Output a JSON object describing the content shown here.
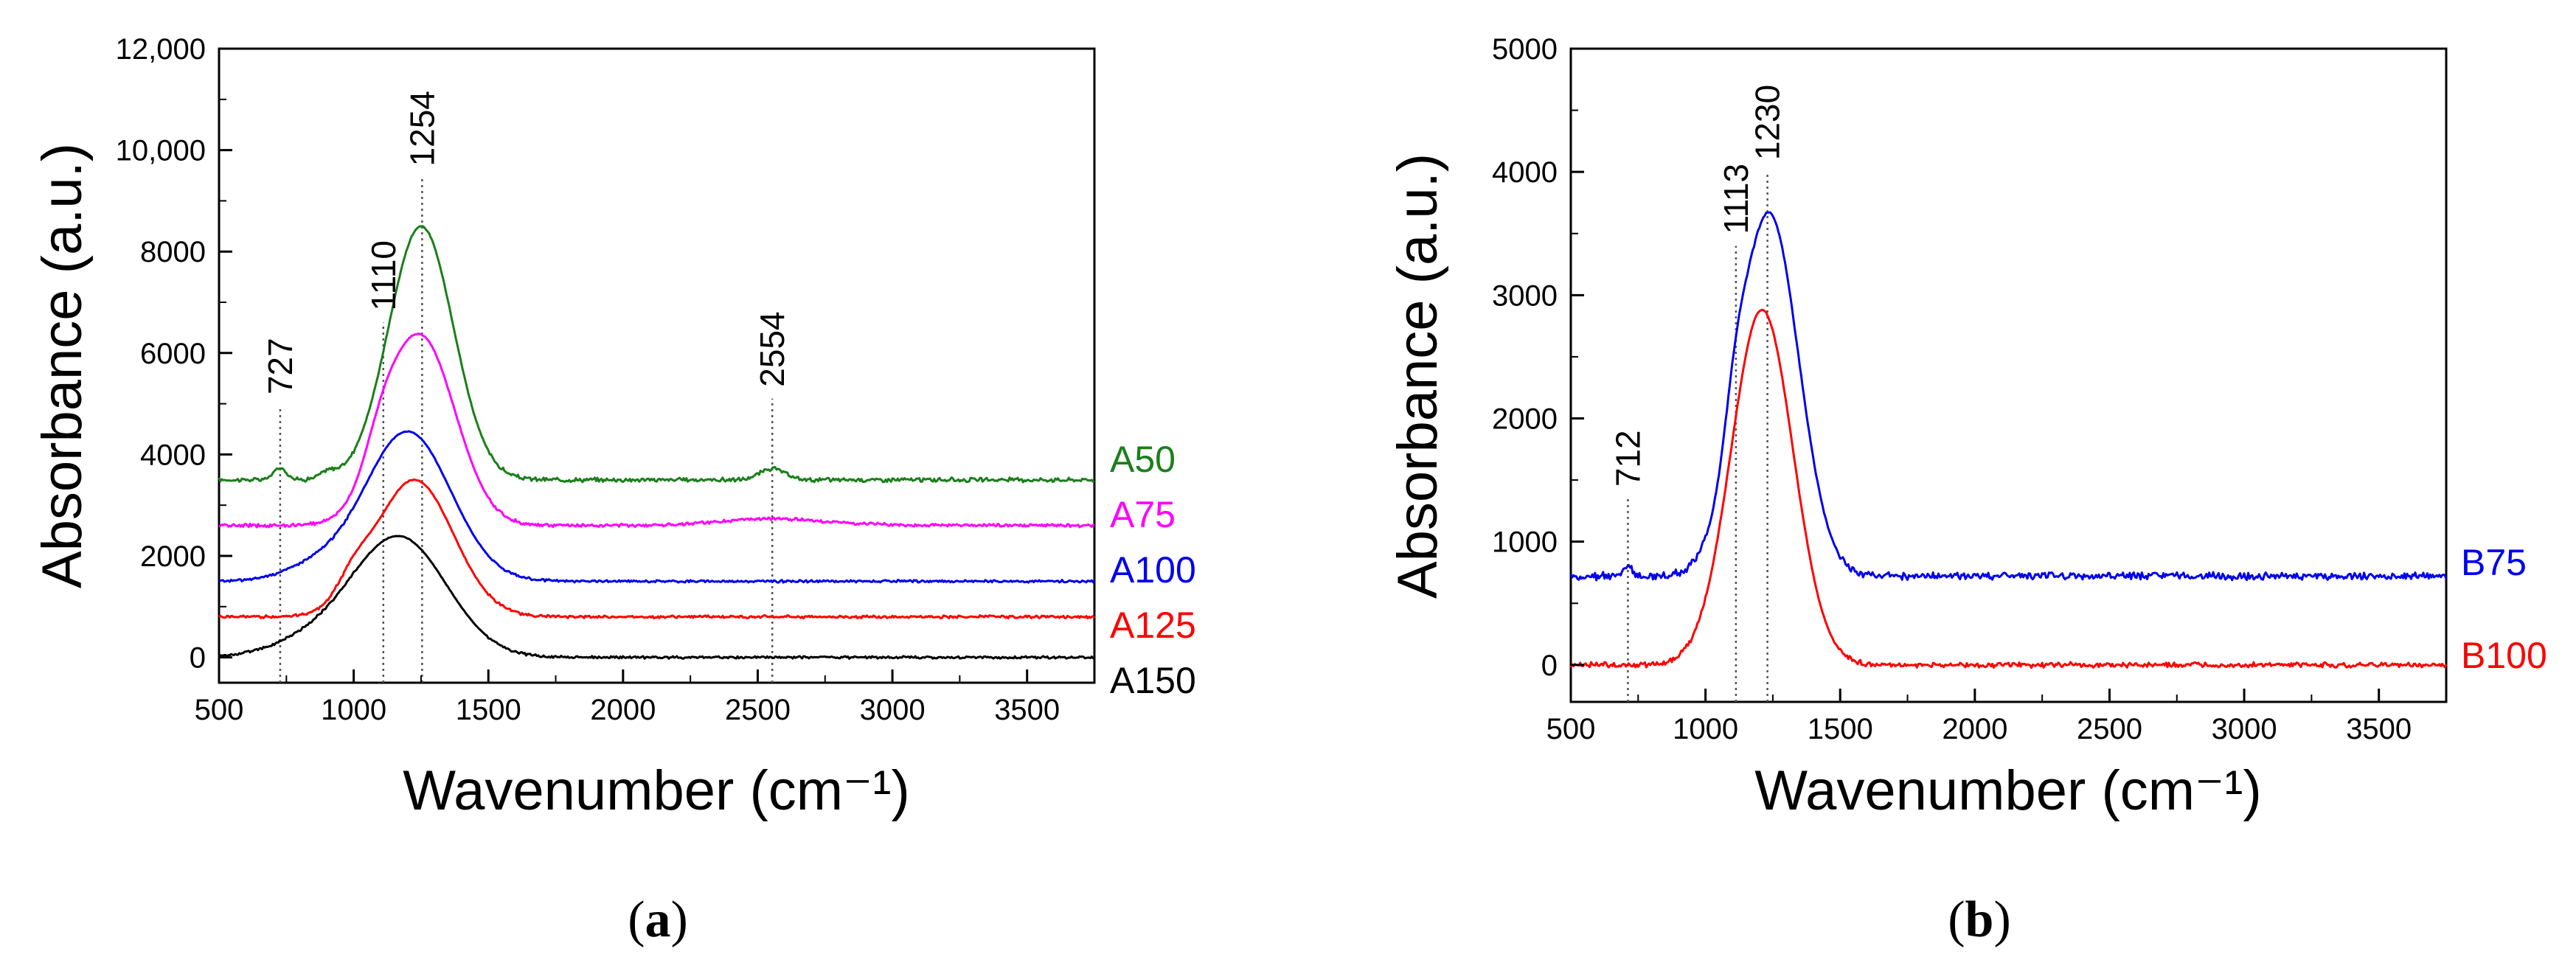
{
  "chart_data": [
    {
      "type": "line",
      "panel": "a",
      "caption": {
        "open": "(",
        "letter": "a",
        "close": ")"
      },
      "xlabel": "Wavenumber (cm⁻¹)",
      "ylabel": "Absorbance (a.u.)",
      "xlim": [
        500,
        3750
      ],
      "ylim": [
        -500,
        12000
      ],
      "xticks": [
        500,
        1000,
        1500,
        2000,
        2500,
        3000,
        3500
      ],
      "xtick_labels": [
        "500",
        "1000",
        "1500",
        "2000",
        "2500",
        "3000",
        "3500"
      ],
      "yticks": [
        0,
        2000,
        4000,
        6000,
        8000,
        10000,
        12000
      ],
      "ytick_labels": [
        "0",
        "2000",
        "4000",
        "6000",
        "8000",
        "10,000",
        "12,000"
      ],
      "legend": "right",
      "series": [
        {
          "name": "A50",
          "color": "#1a7f1a",
          "base": 3500,
          "noise": 60,
          "peaks": [
            [
              1250,
              5000,
              120
            ],
            [
              727,
              230,
              25
            ],
            [
              905,
              120,
              30
            ],
            [
              2554,
              220,
              45
            ]
          ]
        },
        {
          "name": "A75",
          "color": "#ff00ff",
          "base": 2600,
          "noise": 45,
          "peaks": [
            [
              1245,
              3750,
              130
            ],
            [
              1100,
              500,
              60
            ],
            [
              2560,
              130,
              200
            ]
          ]
        },
        {
          "name": "A100",
          "color": "#0000ee",
          "base": 1500,
          "noise": 35,
          "peaks": [
            [
              1200,
              2950,
              160
            ],
            [
              850,
              250,
              120
            ]
          ]
        },
        {
          "name": "A125",
          "color": "#ff0000",
          "base": 800,
          "noise": 40,
          "peaks": [
            [
              1225,
              2700,
              145
            ],
            [
              1000,
              400,
              60
            ]
          ]
        },
        {
          "name": "A150",
          "color": "#000000",
          "base": 0,
          "noise": 35,
          "peaks": [
            [
              1170,
              2350,
              175
            ],
            [
              850,
              300,
              160
            ]
          ]
        }
      ],
      "annotations": [
        {
          "x": 727,
          "text": "727",
          "y_top": 4950
        },
        {
          "x": 1110,
          "text": "1110",
          "y_top": 6600
        },
        {
          "x": 1254,
          "text": "1254",
          "y_top": 9450
        },
        {
          "x": 2554,
          "text": "2554",
          "y_top": 5100
        }
      ]
    },
    {
      "type": "line",
      "panel": "b",
      "caption": {
        "open": "(",
        "letter": "b",
        "close": ")"
      },
      "xlabel": "Wavenumber (cm⁻¹)",
      "ylabel": "Absorbance (a.u.)",
      "xlim": [
        500,
        3750
      ],
      "ylim": [
        -300,
        5000
      ],
      "xticks": [
        500,
        1000,
        1500,
        2000,
        2500,
        3000,
        3500
      ],
      "xtick_labels": [
        "500",
        "1000",
        "1500",
        "2000",
        "2500",
        "3000",
        "3500"
      ],
      "yticks": [
        0,
        1000,
        2000,
        3000,
        4000,
        5000
      ],
      "ytick_labels": [
        "0",
        "1000",
        "2000",
        "3000",
        "4000",
        "5000"
      ],
      "legend": "right",
      "series": [
        {
          "name": "B75",
          "color": "#0000ee",
          "base": 720,
          "noise": 45,
          "peaks": [
            [
              1235,
              2950,
              110
            ],
            [
              1110,
              350,
              40
            ],
            [
              712,
              80,
              15
            ]
          ]
        },
        {
          "name": "B100",
          "color": "#ff0000",
          "base": 0,
          "noise": 30,
          "peaks": [
            [
              1210,
              2880,
              115
            ]
          ]
        }
      ],
      "annotations": [
        {
          "x": 712,
          "text": "712",
          "y_top": 1350
        },
        {
          "x": 1113,
          "text": "1113",
          "y_top": 3400
        },
        {
          "x": 1230,
          "text": "1230",
          "y_top": 4000
        }
      ]
    }
  ]
}
